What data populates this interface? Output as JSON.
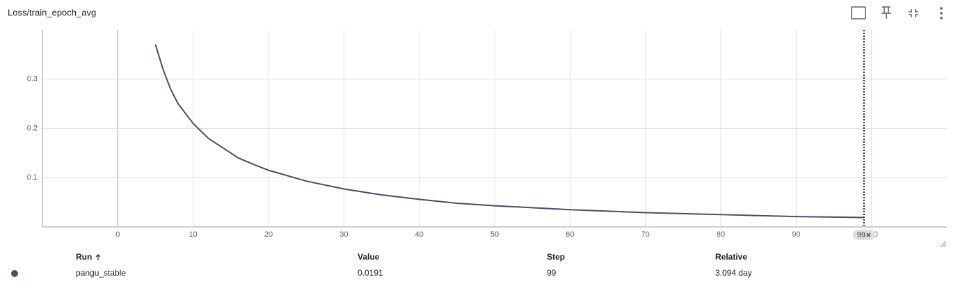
{
  "header": {
    "title": "Loss/train_epoch_avg"
  },
  "chart_data": {
    "type": "line",
    "x": [
      5,
      6,
      7,
      8,
      9,
      10,
      12,
      14,
      16,
      18,
      20,
      25,
      30,
      35,
      40,
      45,
      50,
      55,
      60,
      65,
      70,
      75,
      80,
      85,
      90,
      95,
      99
    ],
    "series": [
      {
        "name": "pangu_stable",
        "color": "#425066",
        "values": [
          0.37,
          0.32,
          0.28,
          0.25,
          0.23,
          0.21,
          0.18,
          0.16,
          0.14,
          0.127,
          0.115,
          0.093,
          0.077,
          0.065,
          0.056,
          0.048,
          0.043,
          0.039,
          0.035,
          0.032,
          0.029,
          0.027,
          0.025,
          0.023,
          0.021,
          0.02,
          0.0191
        ]
      }
    ],
    "xlim": [
      -10,
      110
    ],
    "ylim": [
      0,
      0.4
    ],
    "xticks": [
      0,
      10,
      20,
      30,
      40,
      50,
      60,
      70,
      80,
      90,
      100
    ],
    "yticks": [
      0.1,
      0.2,
      0.3
    ],
    "grid": true,
    "cursor_step": 99
  },
  "table": {
    "columns": [
      "Run",
      "Value",
      "Step",
      "Relative"
    ],
    "rows": [
      [
        "pangu_stable",
        "0.0191",
        "99",
        "3.094 day"
      ]
    ]
  }
}
